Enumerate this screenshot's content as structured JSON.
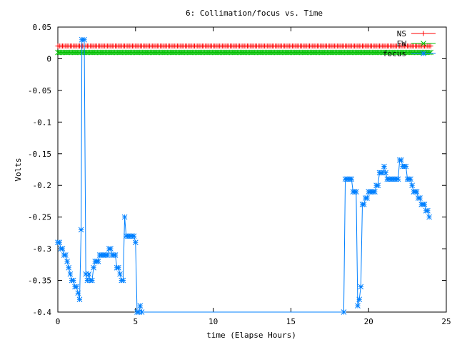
{
  "chart_data": {
    "type": "line",
    "title": "6: Collimation/focus vs. Time",
    "xlabel": "time (Elapse Hours)",
    "ylabel": "Volts",
    "xlim": [
      0,
      25
    ],
    "ylim": [
      -0.4,
      0.05
    ],
    "xticks": [
      0,
      5,
      10,
      15,
      20,
      25
    ],
    "yticks": [
      0.05,
      0,
      -0.05,
      -0.1,
      -0.15,
      -0.2,
      -0.25,
      -0.3,
      -0.35,
      -0.4
    ],
    "xtick_labels": [
      "0",
      "5",
      "10",
      "15",
      "20",
      "25"
    ],
    "ytick_labels": [
      "0.05",
      "0",
      "-0.05",
      "-0.1",
      "-0.15",
      "-0.2",
      "-0.25",
      "-0.3",
      "-0.35",
      "-0.4"
    ],
    "grid": false,
    "legend_position": "top-right",
    "series": [
      {
        "name": "NS",
        "color": "#ff0000",
        "marker": "plus",
        "constant": {
          "x_start": 0,
          "x_end": 24,
          "step": 0.1,
          "y": 0.02
        }
      },
      {
        "name": "EW",
        "color": "#00c000",
        "marker": "cross",
        "constant": {
          "x_start": 0,
          "x_end": 24,
          "step": 0.1,
          "y": 0.01
        }
      },
      {
        "name": "focus",
        "color": "#0080ff",
        "marker": "star",
        "points": [
          [
            0.0,
            -0.29
          ],
          [
            0.1,
            -0.29
          ],
          [
            0.2,
            -0.3
          ],
          [
            0.3,
            -0.3
          ],
          [
            0.4,
            -0.31
          ],
          [
            0.5,
            -0.31
          ],
          [
            0.6,
            -0.32
          ],
          [
            0.7,
            -0.33
          ],
          [
            0.8,
            -0.34
          ],
          [
            0.9,
            -0.35
          ],
          [
            1.0,
            -0.35
          ],
          [
            1.1,
            -0.36
          ],
          [
            1.2,
            -0.36
          ],
          [
            1.3,
            -0.37
          ],
          [
            1.4,
            -0.38
          ],
          [
            1.5,
            -0.27
          ],
          [
            1.55,
            0.03
          ],
          [
            1.7,
            0.03
          ],
          [
            1.8,
            -0.34
          ],
          [
            1.9,
            -0.35
          ],
          [
            2.0,
            -0.34
          ],
          [
            2.1,
            -0.35
          ],
          [
            2.2,
            -0.35
          ],
          [
            2.3,
            -0.33
          ],
          [
            2.4,
            -0.32
          ],
          [
            2.5,
            -0.32
          ],
          [
            2.6,
            -0.32
          ],
          [
            2.7,
            -0.31
          ],
          [
            2.8,
            -0.31
          ],
          [
            2.9,
            -0.31
          ],
          [
            3.0,
            -0.31
          ],
          [
            3.1,
            -0.31
          ],
          [
            3.2,
            -0.31
          ],
          [
            3.3,
            -0.3
          ],
          [
            3.4,
            -0.3
          ],
          [
            3.5,
            -0.31
          ],
          [
            3.6,
            -0.31
          ],
          [
            3.7,
            -0.31
          ],
          [
            3.8,
            -0.33
          ],
          [
            3.9,
            -0.33
          ],
          [
            4.0,
            -0.34
          ],
          [
            4.1,
            -0.35
          ],
          [
            4.2,
            -0.35
          ],
          [
            4.3,
            -0.25
          ],
          [
            4.4,
            -0.28
          ],
          [
            4.5,
            -0.28
          ],
          [
            4.6,
            -0.28
          ],
          [
            4.7,
            -0.28
          ],
          [
            4.8,
            -0.28
          ],
          [
            4.9,
            -0.28
          ],
          [
            5.0,
            -0.29
          ],
          [
            5.1,
            -0.4
          ],
          [
            5.2,
            -0.4
          ],
          [
            5.3,
            -0.39
          ],
          [
            5.4,
            -0.4
          ],
          [
            18.4,
            -0.4
          ],
          [
            18.5,
            -0.19
          ],
          [
            18.6,
            -0.19
          ],
          [
            18.7,
            -0.19
          ],
          [
            18.8,
            -0.19
          ],
          [
            18.9,
            -0.19
          ],
          [
            19.0,
            -0.21
          ],
          [
            19.1,
            -0.21
          ],
          [
            19.2,
            -0.21
          ],
          [
            19.3,
            -0.39
          ],
          [
            19.4,
            -0.38
          ],
          [
            19.5,
            -0.36
          ],
          [
            19.6,
            -0.23
          ],
          [
            19.7,
            -0.23
          ],
          [
            19.8,
            -0.22
          ],
          [
            19.9,
            -0.22
          ],
          [
            20.0,
            -0.21
          ],
          [
            20.1,
            -0.21
          ],
          [
            20.2,
            -0.21
          ],
          [
            20.3,
            -0.21
          ],
          [
            20.4,
            -0.21
          ],
          [
            20.5,
            -0.2
          ],
          [
            20.6,
            -0.2
          ],
          [
            20.7,
            -0.18
          ],
          [
            20.8,
            -0.18
          ],
          [
            20.9,
            -0.18
          ],
          [
            21.0,
            -0.17
          ],
          [
            21.1,
            -0.18
          ],
          [
            21.2,
            -0.19
          ],
          [
            21.3,
            -0.19
          ],
          [
            21.4,
            -0.19
          ],
          [
            21.5,
            -0.19
          ],
          [
            21.6,
            -0.19
          ],
          [
            21.7,
            -0.19
          ],
          [
            21.8,
            -0.19
          ],
          [
            21.9,
            -0.19
          ],
          [
            22.0,
            -0.16
          ],
          [
            22.1,
            -0.16
          ],
          [
            22.2,
            -0.17
          ],
          [
            22.3,
            -0.17
          ],
          [
            22.4,
            -0.17
          ],
          [
            22.5,
            -0.19
          ],
          [
            22.6,
            -0.19
          ],
          [
            22.7,
            -0.19
          ],
          [
            22.8,
            -0.2
          ],
          [
            22.9,
            -0.21
          ],
          [
            23.0,
            -0.21
          ],
          [
            23.1,
            -0.21
          ],
          [
            23.2,
            -0.22
          ],
          [
            23.3,
            -0.22
          ],
          [
            23.4,
            -0.23
          ],
          [
            23.5,
            -0.23
          ],
          [
            23.6,
            -0.23
          ],
          [
            23.7,
            -0.24
          ],
          [
            23.8,
            -0.24
          ],
          [
            23.9,
            -0.25
          ]
        ]
      }
    ]
  }
}
